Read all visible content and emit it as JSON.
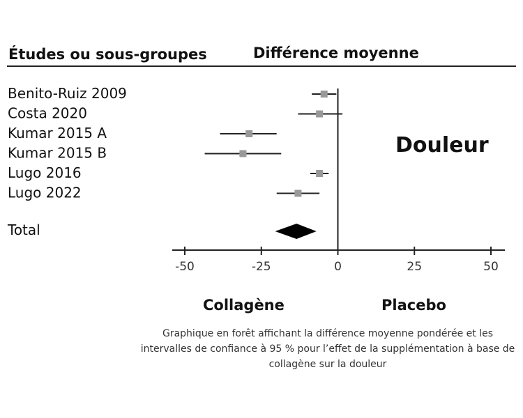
{
  "header": {
    "studies_label": "Études ou sous-groupes",
    "effect_label": "Différence moyenne"
  },
  "outcome_label": "Douleur",
  "favours": {
    "left": "Collagène",
    "right": "Placebo"
  },
  "caption": "Graphique en forêt affichant la différence moyenne pondérée et les intervalles de confiance à 95 % pour l’effet de la supplémentation à base de collagène sur la douleur",
  "chart_data": {
    "type": "forest",
    "xlim": [
      -50,
      50
    ],
    "xticks": [
      -50,
      -25,
      0,
      25,
      50
    ],
    "xtick_labels": [
      "-50",
      "-25",
      "0",
      "25",
      "50"
    ],
    "null_value": 0,
    "studies": [
      {
        "name": "Benito-Ruiz 2009",
        "estimate": -4.5,
        "ci_low": -8.5,
        "ci_high": -0.5
      },
      {
        "name": "Costa 2020",
        "estimate": -6,
        "ci_low": -13,
        "ci_high": 1.5
      },
      {
        "name": "Kumar 2015 A",
        "estimate": -29,
        "ci_low": -38.5,
        "ci_high": -20
      },
      {
        "name": "Kumar 2015 B",
        "estimate": -31,
        "ci_low": -43.5,
        "ci_high": -18.5
      },
      {
        "name": "Lugo 2016",
        "estimate": -6,
        "ci_low": -9,
        "ci_high": -3
      },
      {
        "name": "Lugo 2022",
        "estimate": -13,
        "ci_low": -20,
        "ci_high": -6
      }
    ],
    "total": {
      "name": "Total",
      "estimate": -13.5,
      "ci_low": -20.5,
      "ci_high": -7
    }
  }
}
